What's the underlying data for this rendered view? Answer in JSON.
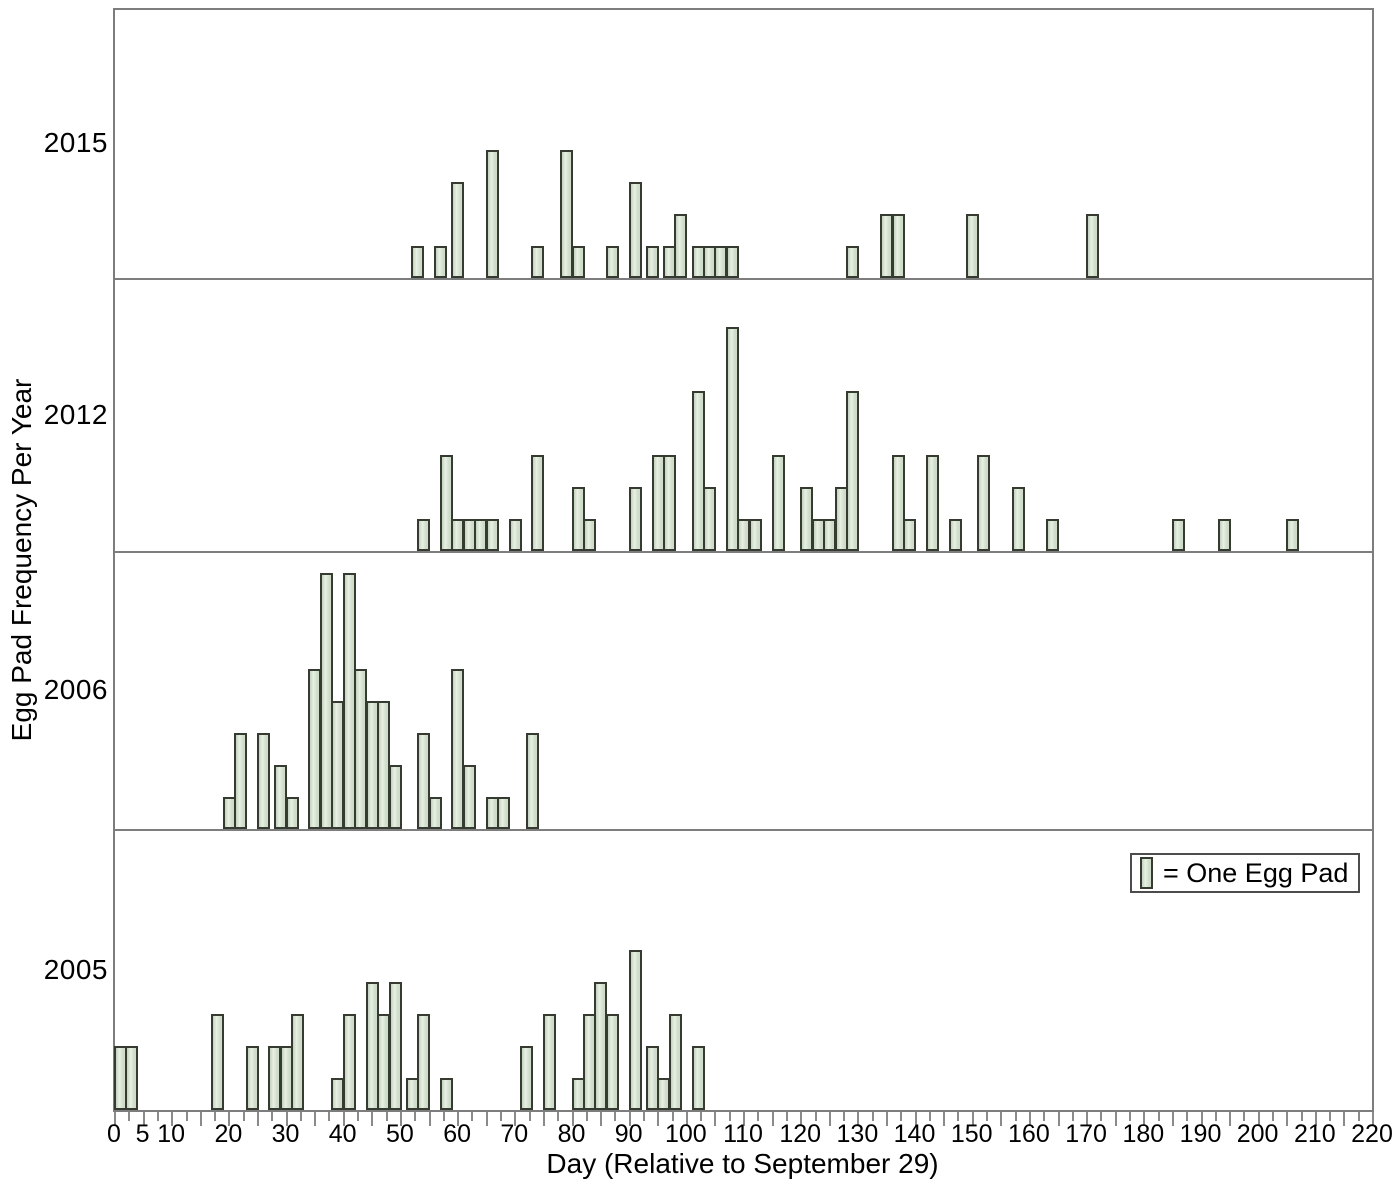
{
  "chart_data": {
    "type": "bar",
    "title": "",
    "xlabel": "Day (Relative to September 29)",
    "ylabel": "Egg Pad Frequency Per Year",
    "legend": "= One Egg Pad",
    "legend_note": "each height unit of a bar equals one egg pad",
    "x_range": [
      0,
      220
    ],
    "x_minor_tick_step": 2.5,
    "x_major_tick_step": 5,
    "x_tick_label_days": [
      0,
      5,
      10,
      20,
      30,
      40,
      50,
      60,
      70,
      80,
      90,
      100,
      110,
      120,
      130,
      140,
      150,
      160,
      170,
      180,
      190,
      200,
      210,
      220
    ],
    "x_tick_labels": [
      "0",
      "5",
      "10",
      "20",
      "30",
      "40",
      "50",
      "60",
      "70",
      "80",
      "90",
      "100",
      "110",
      "120",
      "130",
      "140",
      "150",
      "160",
      "170",
      "180",
      "190",
      "200",
      "210",
      "220"
    ],
    "grid": false,
    "legend_position": "inside bottom panel, right",
    "panels": [
      {
        "year": "2015",
        "bars": [
          [
            52,
            1
          ],
          [
            56,
            1
          ],
          [
            59,
            3
          ],
          [
            65,
            4
          ],
          [
            73,
            1
          ],
          [
            78,
            4
          ],
          [
            80,
            1
          ],
          [
            86,
            1
          ],
          [
            90,
            3
          ],
          [
            93,
            1
          ],
          [
            96,
            1
          ],
          [
            98,
            2
          ],
          [
            101,
            1
          ],
          [
            103,
            1
          ],
          [
            105,
            1
          ],
          [
            107,
            1
          ],
          [
            128,
            1
          ],
          [
            134,
            2
          ],
          [
            136,
            2
          ],
          [
            149,
            2
          ],
          [
            170,
            2
          ]
        ]
      },
      {
        "year": "2012",
        "bars": [
          [
            53,
            1
          ],
          [
            57,
            3
          ],
          [
            59,
            1
          ],
          [
            61,
            1
          ],
          [
            63,
            1
          ],
          [
            65,
            1
          ],
          [
            69,
            1
          ],
          [
            73,
            3
          ],
          [
            80,
            2
          ],
          [
            82,
            1
          ],
          [
            90,
            2
          ],
          [
            94,
            3
          ],
          [
            96,
            3
          ],
          [
            101,
            5
          ],
          [
            103,
            2
          ],
          [
            107,
            7
          ],
          [
            109,
            1
          ],
          [
            111,
            1
          ],
          [
            115,
            3
          ],
          [
            120,
            2
          ],
          [
            122,
            1
          ],
          [
            124,
            1
          ],
          [
            126,
            2
          ],
          [
            128,
            5
          ],
          [
            136,
            3
          ],
          [
            138,
            1
          ],
          [
            142,
            3
          ],
          [
            146,
            1
          ],
          [
            151,
            3
          ],
          [
            157,
            2
          ],
          [
            163,
            1
          ],
          [
            185,
            1
          ],
          [
            193,
            1
          ],
          [
            205,
            1
          ]
        ]
      },
      {
        "year": "2006",
        "bars": [
          [
            19,
            1
          ],
          [
            21,
            3
          ],
          [
            25,
            3
          ],
          [
            28,
            2
          ],
          [
            30,
            1
          ],
          [
            34,
            5
          ],
          [
            36,
            8
          ],
          [
            38,
            4
          ],
          [
            40,
            8
          ],
          [
            42,
            5
          ],
          [
            44,
            4
          ],
          [
            46,
            4
          ],
          [
            48,
            2
          ],
          [
            53,
            3
          ],
          [
            55,
            1
          ],
          [
            59,
            5
          ],
          [
            61,
            2
          ],
          [
            65,
            1
          ],
          [
            67,
            1
          ],
          [
            72,
            3
          ]
        ]
      },
      {
        "year": "2005",
        "bars": [
          [
            0,
            2
          ],
          [
            2,
            2
          ],
          [
            17,
            3
          ],
          [
            23,
            2
          ],
          [
            27,
            2
          ],
          [
            29,
            2
          ],
          [
            31,
            3
          ],
          [
            38,
            1
          ],
          [
            40,
            3
          ],
          [
            44,
            4
          ],
          [
            46,
            3
          ],
          [
            48,
            4
          ],
          [
            51,
            1
          ],
          [
            53,
            3
          ],
          [
            57,
            1
          ],
          [
            71,
            2
          ],
          [
            75,
            3
          ],
          [
            80,
            1
          ],
          [
            82,
            3
          ],
          [
            84,
            4
          ],
          [
            86,
            3
          ],
          [
            90,
            5
          ],
          [
            93,
            2
          ],
          [
            95,
            1
          ],
          [
            97,
            3
          ],
          [
            101,
            2
          ]
        ]
      }
    ],
    "colors": {
      "background": "#ffffff",
      "bar_fill": "#cfdcca",
      "bar_highlight": "#e9efe4",
      "bar_shade": "#c3d2be",
      "bar_border": "#363b31",
      "axis_line": "#7d7d7d",
      "tick": "#8a8a8a",
      "legend_border": "#4c4c4c",
      "text": "#000000"
    }
  }
}
